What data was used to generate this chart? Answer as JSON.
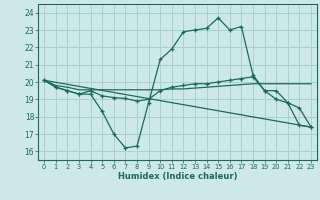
{
  "xlabel": "Humidex (Indice chaleur)",
  "bg_color": "#cce8e8",
  "grid_color": "#aad0d0",
  "line_color": "#1a6b5a",
  "xlim": [
    -0.5,
    23.5
  ],
  "ylim": [
    15.5,
    24.5
  ],
  "yticks": [
    16,
    17,
    18,
    19,
    20,
    21,
    22,
    23,
    24
  ],
  "xticks": [
    0,
    1,
    2,
    3,
    4,
    5,
    6,
    7,
    8,
    9,
    10,
    11,
    12,
    13,
    14,
    15,
    16,
    17,
    18,
    19,
    20,
    21,
    22,
    23
  ],
  "curve1_x": [
    0,
    1,
    2,
    3,
    4,
    5,
    6,
    7,
    8,
    9,
    10,
    11,
    12,
    13,
    14,
    15,
    16,
    17,
    18,
    19,
    20,
    21,
    22,
    23
  ],
  "curve1_y": [
    20.1,
    19.7,
    19.5,
    19.3,
    19.3,
    18.3,
    17.0,
    16.2,
    16.3,
    18.8,
    21.3,
    21.9,
    22.9,
    23.0,
    23.1,
    23.7,
    23.0,
    23.2,
    20.4,
    19.5,
    19.0,
    18.8,
    17.5,
    17.4
  ],
  "curve2_x": [
    0,
    1,
    2,
    3,
    4,
    5,
    6,
    7,
    8,
    9,
    10,
    11,
    12,
    13,
    14,
    15,
    16,
    17,
    18,
    19,
    20,
    21,
    22,
    23
  ],
  "curve2_y": [
    20.1,
    19.7,
    19.5,
    19.3,
    19.5,
    19.2,
    19.1,
    19.05,
    18.9,
    19.0,
    19.5,
    19.7,
    19.8,
    19.9,
    19.9,
    20.0,
    20.1,
    20.2,
    20.3,
    19.5,
    19.5,
    18.8,
    18.5,
    17.4
  ],
  "curve3_x": [
    0,
    1,
    2,
    3,
    4,
    5,
    6,
    7,
    8,
    9,
    10,
    11,
    12,
    13,
    14,
    15,
    16,
    17,
    18,
    19,
    20,
    21,
    22,
    23
  ],
  "curve3_y": [
    20.1,
    19.8,
    19.7,
    19.55,
    19.55,
    19.55,
    19.55,
    19.55,
    19.55,
    19.55,
    19.55,
    19.6,
    19.6,
    19.65,
    19.7,
    19.75,
    19.8,
    19.85,
    19.9,
    19.9,
    19.9,
    19.9,
    19.9,
    19.9
  ],
  "curve4_x": [
    0,
    23
  ],
  "curve4_y": [
    20.1,
    17.4
  ]
}
